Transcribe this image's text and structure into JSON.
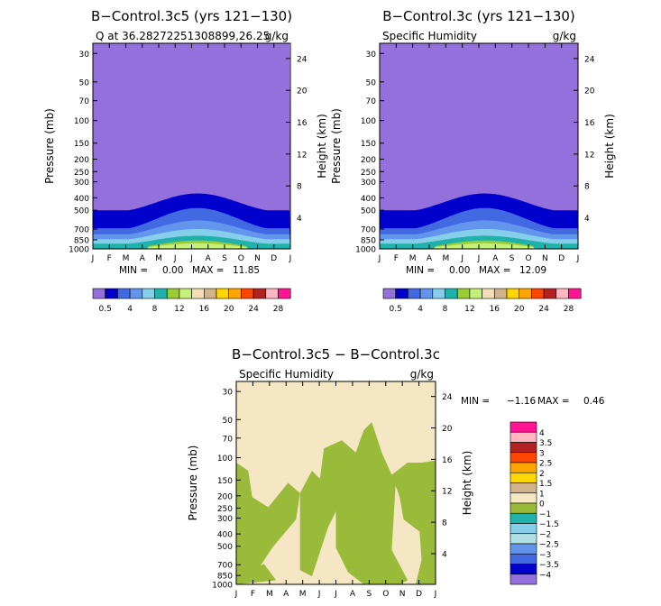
{
  "chart_data": [
    {
      "type": "contour",
      "title": "B−Control.3c5 (yrs 121−130)",
      "subtitle_left": "Q at 36.28272251308899,26.25",
      "subtitle_right": "g/kg",
      "xlabel": "",
      "ylabel": "Pressure (mb)",
      "ylabel_right": "Height (km)",
      "x_ticks": [
        "J",
        "F",
        "M",
        "A",
        "M",
        "J",
        "J",
        "A",
        "S",
        "O",
        "N",
        "D",
        "J"
      ],
      "y_ticks": [
        30,
        50,
        70,
        100,
        150,
        200,
        250,
        300,
        400,
        500,
        700,
        850,
        1000
      ],
      "y_ticks_right": [
        24,
        20,
        16,
        12,
        8,
        4
      ],
      "min_label": "MIN =",
      "min_value": "0.00",
      "max_label": "MAX =",
      "max_value": "11.85",
      "colorbar_labels": [
        "0.5",
        "4",
        "8",
        "12",
        "16",
        "20",
        "24",
        "28"
      ],
      "contour_levels": [
        0.5,
        2,
        4,
        6,
        8,
        10,
        12,
        14,
        16,
        18,
        20,
        22,
        24,
        26,
        28
      ],
      "seasonal_contour_tops_mb": [
        {
          "level": 0.5,
          "jan": 500,
          "jul": 370
        },
        {
          "level": 2,
          "jan": 700,
          "jul": 480
        },
        {
          "level": 4,
          "jan": 780,
          "jul": 600
        },
        {
          "level": 6,
          "jan": 840,
          "jul": 700
        },
        {
          "level": 8,
          "jan": 900,
          "jul": 780
        },
        {
          "level": 10,
          "jan": 960,
          "jul": 840
        },
        {
          "level": 11.85,
          "jan": null,
          "jul": 880
        }
      ]
    },
    {
      "type": "contour",
      "title": "B−Control.3c (yrs 121−130)",
      "subtitle_left": "Specific Humidity",
      "subtitle_right": "g/kg",
      "xlabel": "",
      "ylabel": "Pressure (mb)",
      "ylabel_right": "Height (km)",
      "x_ticks": [
        "J",
        "F",
        "M",
        "A",
        "M",
        "J",
        "J",
        "A",
        "S",
        "O",
        "N",
        "D",
        "J"
      ],
      "y_ticks": [
        30,
        50,
        70,
        100,
        150,
        200,
        250,
        300,
        400,
        500,
        700,
        850,
        1000
      ],
      "y_ticks_right": [
        24,
        20,
        16,
        12,
        8,
        4
      ],
      "min_label": "MIN =",
      "min_value": "0.00",
      "max_label": "MAX =",
      "max_value": "12.09",
      "colorbar_labels": [
        "0.5",
        "4",
        "8",
        "12",
        "16",
        "20",
        "24",
        "28"
      ],
      "contour_levels": [
        0.5,
        2,
        4,
        6,
        8,
        10,
        12,
        14,
        16,
        18,
        20,
        22,
        24,
        26,
        28
      ]
    },
    {
      "type": "contour",
      "title": "B−Control.3c5 − B−Control.3c",
      "subtitle_left": "Specific Humidity",
      "subtitle_right": "g/kg",
      "xlabel": "",
      "ylabel": "Pressure (mb)",
      "ylabel_right": "Height (km)",
      "x_ticks": [
        "J",
        "F",
        "M",
        "A",
        "M",
        "J",
        "J",
        "A",
        "S",
        "O",
        "N",
        "D",
        "J"
      ],
      "y_ticks": [
        30,
        50,
        70,
        100,
        150,
        200,
        250,
        300,
        400,
        500,
        700,
        850,
        1000
      ],
      "y_ticks_right": [
        24,
        20,
        16,
        12,
        8,
        4
      ],
      "min_label": "MIN =",
      "min_value": "−1.16",
      "max_label": "MAX =",
      "max_value": "0.46",
      "colorbar_labels": [
        "4",
        "3.5",
        "3",
        "2.5",
        "2",
        "1.5",
        "1",
        "0",
        "−1",
        "−1.5",
        "−2",
        "−2.5",
        "−3",
        "−3.5",
        "−4"
      ],
      "dominant_fill": "0 to 1",
      "negative_fill": "−1 to 0"
    }
  ],
  "palette": {
    "seq": [
      "#9370db",
      "#0000cd",
      "#4169e1",
      "#6495ed",
      "#87ceeb",
      "#20b2aa",
      "#9acd32",
      "#c5f07a",
      "#f5deb3",
      "#d2b48c",
      "#ffd700",
      "#ffa500",
      "#ff4500",
      "#b22222",
      "#ffb6c1",
      "#ff1493"
    ],
    "diff": [
      "#ff1493",
      "#ffb6c1",
      "#b22222",
      "#ff4500",
      "#ffa500",
      "#ffd700",
      "#d2b48c",
      "#f5e6c4",
      "#9aba3a",
      "#20b2aa",
      "#87ceeb",
      "#b0e0e6",
      "#6495ed",
      "#4169e1",
      "#0000cd",
      "#9370db"
    ]
  }
}
